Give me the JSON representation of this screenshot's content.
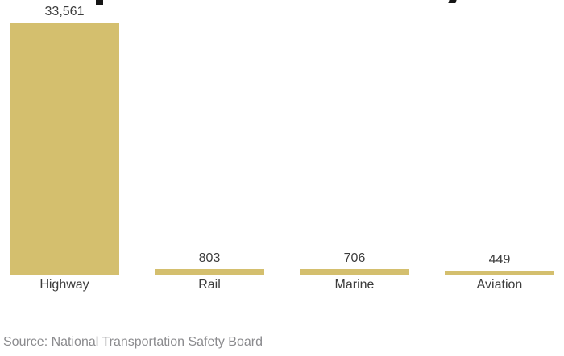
{
  "page": {
    "background": "#ffffff",
    "artifacts": {
      "description": "Two small black glyph descender fragments visible at the very top edge; chart title itself is cropped out of frame",
      "fragment_left": "cropped-title-glyph-fragment",
      "fragment_right": "cropped-title-glyph-fragment"
    }
  },
  "chart_data": {
    "type": "bar",
    "title": "",
    "title_cropped": true,
    "xlabel": "",
    "ylabel": "",
    "categories": [
      "Highway",
      "Rail",
      "Marine",
      "Aviation"
    ],
    "values": [
      33561,
      803,
      706,
      449
    ],
    "value_labels": [
      "33,561",
      "803",
      "706",
      "449"
    ],
    "ylim": [
      0,
      33561
    ],
    "grid": false,
    "legend": false,
    "axis_line": false,
    "source": "Source: National Transportation Safety Board",
    "colors": {
      "bar": "#d4bf6e",
      "value_label": "#3c3c3c",
      "category_label": "#3c3c3c",
      "source_text": "#8b8b8e",
      "title_fragment": "#151515",
      "background": "#ffffff"
    }
  }
}
